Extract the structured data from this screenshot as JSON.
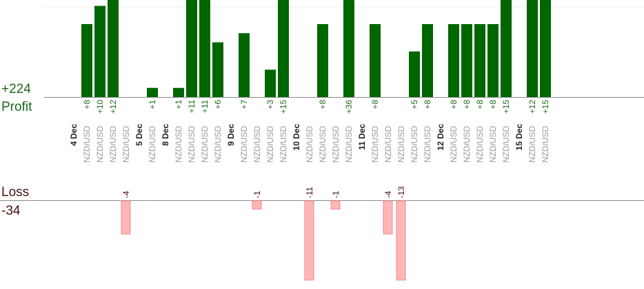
{
  "summary": {
    "profit_value": "+224",
    "profit_label": "Profit",
    "loss_label": "Loss",
    "loss_value": "-34"
  },
  "colors": {
    "profit_bar": "#006600",
    "loss_bar": "#ffb6b6",
    "loss_bar_border": "#ee8888",
    "profit_text": "#1a6a1a",
    "loss_text": "#4a1010",
    "instrument_text": "#999999",
    "date_text": "#222222",
    "axis_line": "#888888"
  },
  "chart_data": {
    "type": "bar",
    "scale_max_profit": 12,
    "slots": [
      {
        "kind": "date",
        "label": "4 Dec"
      },
      {
        "kind": "trade",
        "instrument": "NZD/USD",
        "value": 8,
        "label": "+8"
      },
      {
        "kind": "trade",
        "instrument": "NZD/USD",
        "value": 10,
        "label": "+10"
      },
      {
        "kind": "trade",
        "instrument": "NZD/USD",
        "value": 12,
        "label": "+12"
      },
      {
        "kind": "trade",
        "instrument": "NZD/USD",
        "value": -4,
        "label": "-4"
      },
      {
        "kind": "date",
        "label": "5 Dec"
      },
      {
        "kind": "trade",
        "instrument": "NZD/USD",
        "value": 1,
        "label": "+1"
      },
      {
        "kind": "date",
        "label": "8 Dec"
      },
      {
        "kind": "trade",
        "instrument": "NZD/USD",
        "value": 1,
        "label": "+1"
      },
      {
        "kind": "trade",
        "instrument": "NZD/USD",
        "value": 11,
        "label": "+11"
      },
      {
        "kind": "trade",
        "instrument": "NZD/USD",
        "value": 11,
        "label": "+11"
      },
      {
        "kind": "trade",
        "instrument": "NZD/USD",
        "value": 6,
        "label": "+6"
      },
      {
        "kind": "date",
        "label": "9 Dec"
      },
      {
        "kind": "trade",
        "instrument": "NZD/USD",
        "value": 7,
        "label": "+7"
      },
      {
        "kind": "trade",
        "instrument": "NZD/USD",
        "value": -1,
        "label": "-1"
      },
      {
        "kind": "trade",
        "instrument": "NZD/USD",
        "value": 3,
        "label": "+3"
      },
      {
        "kind": "trade",
        "instrument": "NZD/USD",
        "value": 15,
        "label": "+15"
      },
      {
        "kind": "date",
        "label": "10 Dec"
      },
      {
        "kind": "trade",
        "instrument": "NZD/USD",
        "value": -11,
        "label": "-11"
      },
      {
        "kind": "trade",
        "instrument": "NZD/USD",
        "value": 8,
        "label": "+8"
      },
      {
        "kind": "trade",
        "instrument": "NZD/USD",
        "value": -1,
        "label": "-1"
      },
      {
        "kind": "trade",
        "instrument": "NZD/USD",
        "value": 36,
        "label": "+36"
      },
      {
        "kind": "date",
        "label": "11 Dec"
      },
      {
        "kind": "trade",
        "instrument": "NZD/USD",
        "value": 8,
        "label": "+8"
      },
      {
        "kind": "trade",
        "instrument": "NZD/USD",
        "value": -4,
        "label": "-4"
      },
      {
        "kind": "trade",
        "instrument": "NZD/USD",
        "value": -13,
        "label": "-13"
      },
      {
        "kind": "trade",
        "instrument": "NZD/USD",
        "value": 5,
        "label": "+5"
      },
      {
        "kind": "trade",
        "instrument": "NZD/USD",
        "value": 8,
        "label": "+8"
      },
      {
        "kind": "date",
        "label": "12 Dec"
      },
      {
        "kind": "trade",
        "instrument": "NZD/USD",
        "value": 8,
        "label": "+8"
      },
      {
        "kind": "trade",
        "instrument": "NZD/USD",
        "value": 8,
        "label": "+8"
      },
      {
        "kind": "trade",
        "instrument": "NZD/USD",
        "value": 8,
        "label": "+8"
      },
      {
        "kind": "trade",
        "instrument": "NZD/USD",
        "value": 8,
        "label": "+8"
      },
      {
        "kind": "trade",
        "instrument": "NZD/USD",
        "value": 15,
        "label": "+15"
      },
      {
        "kind": "date",
        "label": "15 Dec"
      },
      {
        "kind": "trade",
        "instrument": "NZD/USD",
        "value": 12,
        "label": "+12"
      },
      {
        "kind": "trade",
        "instrument": "NZD/USD",
        "value": 15,
        "label": "+15"
      }
    ]
  }
}
